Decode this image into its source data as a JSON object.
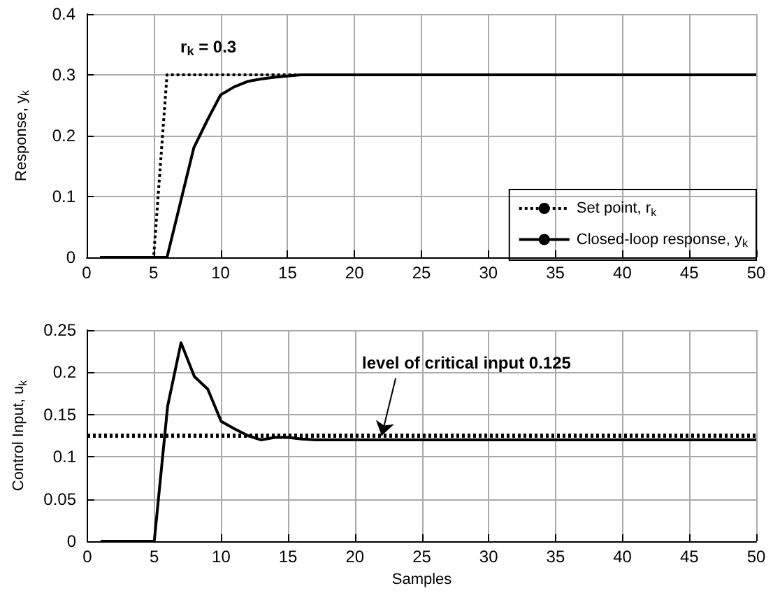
{
  "chart_data": [
    {
      "type": "line",
      "ylabel": "Response, y$_{k}$",
      "xlim": [
        0,
        50
      ],
      "xticks": [
        0,
        5,
        10,
        15,
        20,
        25,
        30,
        35,
        40,
        45,
        50
      ],
      "ylim": [
        0,
        0.4
      ],
      "yticks": [
        0,
        0.1,
        0.2,
        0.3,
        0.4
      ],
      "grid": true,
      "legend": "bottom right",
      "marker": "none",
      "annotations": [
        {
          "text": "r$_{k}$ = 0.3",
          "x": 7,
          "y": 0.3
        }
      ],
      "series": [
        {
          "name": "Set point, r$_{k}$",
          "color": "#000000",
          "line_style": "dotted",
          "x": [
            1,
            2,
            3,
            4,
            5,
            6,
            50
          ],
          "values": [
            0,
            0,
            0,
            0,
            0,
            0.3,
            0.3
          ]
        },
        {
          "name": "Closed-loop response, y$_{k}$",
          "color": "#000000",
          "line_style": "solid",
          "x": [
            1,
            2,
            3,
            4,
            5,
            6,
            7,
            8,
            9,
            10,
            11,
            12,
            13,
            14,
            15,
            16,
            50
          ],
          "values": [
            0,
            0,
            0,
            0,
            0,
            0,
            0.09,
            0.18,
            0.225,
            0.267,
            0.28,
            0.289,
            0.293,
            0.296,
            0.298,
            0.3,
            0.3
          ]
        }
      ]
    },
    {
      "type": "line",
      "xlabel": "Samples",
      "ylabel": "Control Input, u$_{k}$",
      "xlim": [
        0,
        50
      ],
      "xticks": [
        0,
        5,
        10,
        15,
        20,
        25,
        30,
        35,
        40,
        45,
        50
      ],
      "ylim": [
        0,
        0.25
      ],
      "yticks": [
        0,
        0.05,
        0.1,
        0.15,
        0.2,
        0.25
      ],
      "grid": true,
      "marker": "none",
      "annotations": [
        {
          "text": "level of critical input 0.125",
          "x": 22,
          "y": 0.125
        }
      ],
      "ref_lines": [
        {
          "axis": "y",
          "value": 0.125,
          "color": "#000000",
          "line_style": "dotted"
        }
      ],
      "series": [
        {
          "color": "#000000",
          "line_style": "solid",
          "x": [
            1,
            2,
            3,
            4,
            5,
            6,
            7,
            8,
            9,
            10,
            11,
            12,
            13,
            14,
            15,
            16,
            17,
            50
          ],
          "values": [
            0,
            0,
            0,
            0,
            0,
            0.16,
            0.235,
            0.195,
            0.18,
            0.142,
            0.133,
            0.125,
            0.12,
            0.123,
            0.123,
            0.121,
            0.12,
            0.12
          ]
        }
      ]
    }
  ]
}
